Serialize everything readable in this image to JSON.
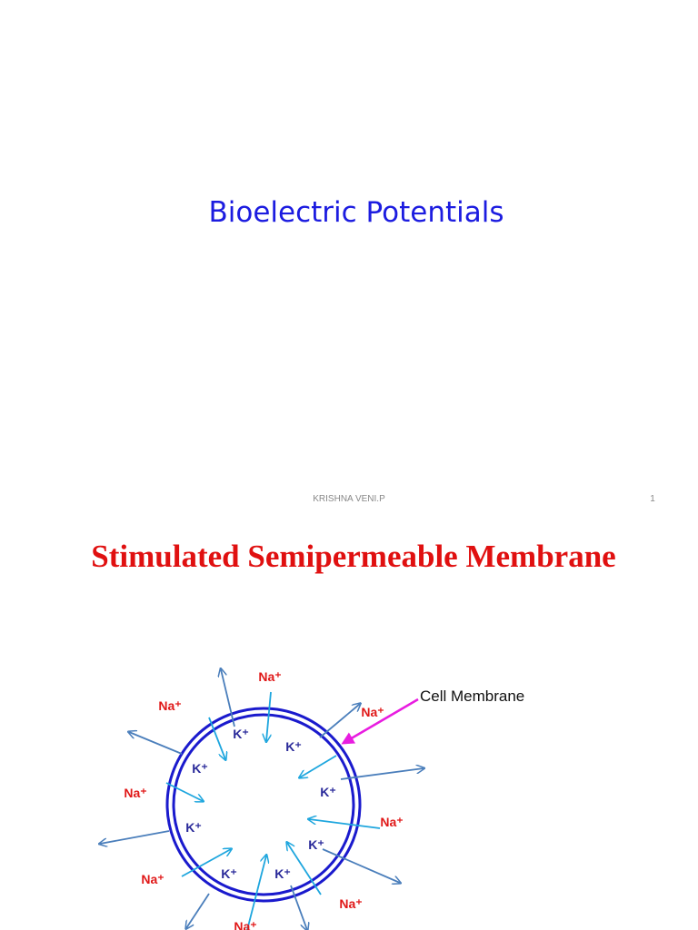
{
  "slide1": {
    "title": "Bioelectric Potentials",
    "footer": "KRISHNA VENI.P",
    "page_number": 1
  },
  "slide2": {
    "title": "Stimulated Semipermeable Membrane",
    "membrane_label": "Cell Membrane",
    "ions": [
      "Na⁺",
      "Na⁺",
      "Na⁺",
      "K⁺",
      "K⁺",
      "K⁺",
      "K⁺",
      "Na⁺",
      "K⁺",
      "Na⁺",
      "K⁺",
      "K⁺",
      "K⁺",
      "Na⁺",
      "Na⁺",
      "Na⁺"
    ]
  }
}
